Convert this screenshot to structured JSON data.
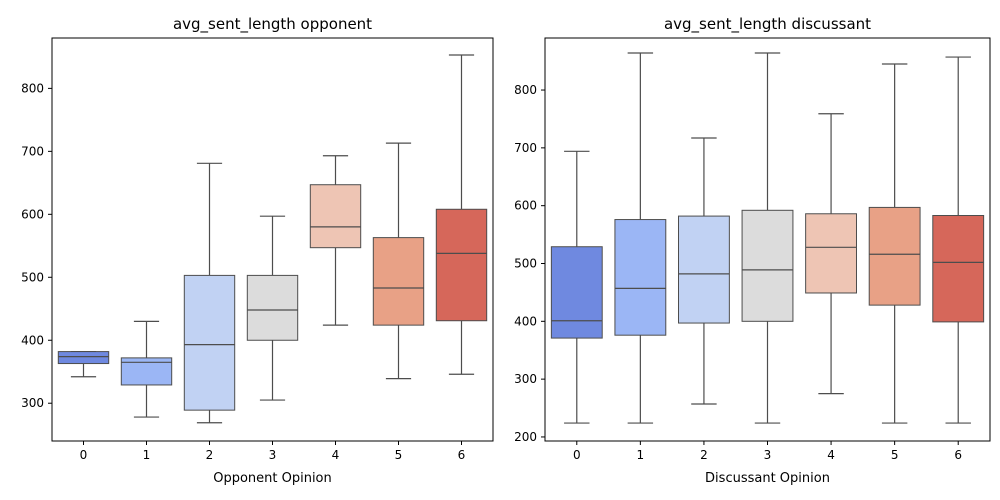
{
  "chart_data": [
    {
      "type": "box",
      "title": "avg_sent_length opponent",
      "xlabel": "Opponent Opinion",
      "ylabel": "",
      "categories": [
        "0",
        "1",
        "2",
        "3",
        "4",
        "5",
        "6"
      ],
      "ylim": [
        240,
        880
      ],
      "yticks": [
        300,
        400,
        500,
        600,
        700,
        800
      ],
      "boxes": [
        {
          "min": 342,
          "q1": 363,
          "median": 374,
          "q3": 382,
          "max": 382
        },
        {
          "min": 278,
          "q1": 329,
          "median": 365,
          "q3": 372,
          "max": 430
        },
        {
          "min": 269,
          "q1": 289,
          "median": 393,
          "q3": 503,
          "max": 681
        },
        {
          "min": 305,
          "q1": 400,
          "median": 448,
          "q3": 503,
          "max": 597
        },
        {
          "min": 424,
          "q1": 547,
          "median": 580,
          "q3": 647,
          "max": 693
        },
        {
          "min": 339,
          "q1": 424,
          "median": 483,
          "q3": 563,
          "max": 713
        },
        {
          "min": 346,
          "q1": 431,
          "median": 538,
          "q3": 608,
          "max": 853
        }
      ],
      "colors": [
        "#6f89e0",
        "#9bb6f5",
        "#c1d2f3",
        "#dcdcdc",
        "#eec5b4",
        "#e8a186",
        "#d6675a"
      ],
      "grid": false
    },
    {
      "type": "box",
      "title": "avg_sent_length discussant",
      "xlabel": "Discussant Opinion",
      "ylabel": "",
      "categories": [
        "0",
        "1",
        "2",
        "3",
        "4",
        "5",
        "6"
      ],
      "ylim": [
        193,
        890
      ],
      "yticks": [
        200,
        300,
        400,
        500,
        600,
        700,
        800
      ],
      "boxes": [
        {
          "min": 224,
          "q1": 371,
          "median": 401,
          "q3": 529,
          "max": 694
        },
        {
          "min": 224,
          "q1": 376,
          "median": 457,
          "q3": 576,
          "max": 864
        },
        {
          "min": 257,
          "q1": 397,
          "median": 482,
          "q3": 582,
          "max": 717
        },
        {
          "min": 224,
          "q1": 400,
          "median": 489,
          "q3": 592,
          "max": 864
        },
        {
          "min": 275,
          "q1": 449,
          "median": 528,
          "q3": 586,
          "max": 759
        },
        {
          "min": 224,
          "q1": 428,
          "median": 516,
          "q3": 597,
          "max": 845
        },
        {
          "min": 224,
          "q1": 399,
          "median": 502,
          "q3": 583,
          "max": 857
        }
      ],
      "colors": [
        "#6f89e0",
        "#9bb6f5",
        "#c1d2f3",
        "#dcdcdc",
        "#eec5b4",
        "#e8a186",
        "#d6675a"
      ],
      "grid": false
    }
  ]
}
